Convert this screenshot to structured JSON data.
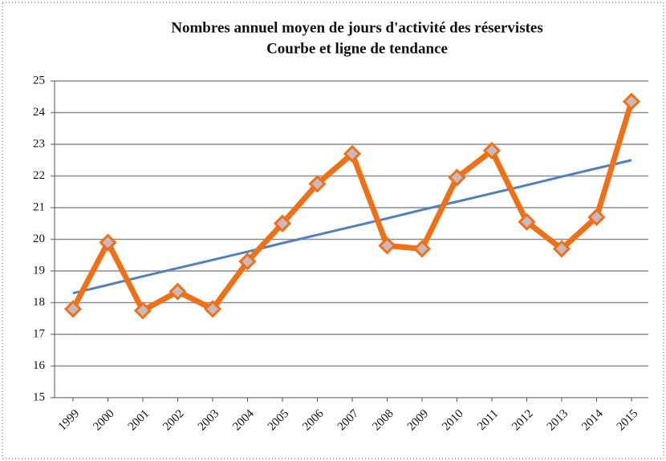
{
  "chart_data": {
    "type": "line",
    "title": "Nombres annuel moyen de jours d'activité des réservistes",
    "subtitle": "Courbe et ligne de tendance",
    "categories": [
      "1999",
      "2000",
      "2001",
      "2002",
      "2003",
      "2004",
      "2005",
      "2006",
      "2007",
      "2008",
      "2009",
      "2010",
      "2011",
      "2012",
      "2013",
      "2014",
      "2015"
    ],
    "series": [
      {
        "color": "#f07018",
        "values": [
          17.8,
          19.9,
          17.75,
          18.35,
          17.8,
          19.3,
          20.5,
          21.75,
          22.7,
          19.8,
          19.7,
          21.95,
          22.8,
          20.55,
          19.7,
          20.7,
          24.35
        ]
      },
      {
        "color": "#4f81bd",
        "values": [
          18.3,
          18.56,
          18.83,
          19.09,
          19.35,
          19.61,
          19.88,
          20.14,
          20.4,
          20.66,
          20.93,
          21.19,
          21.45,
          21.71,
          21.98,
          22.24,
          22.5
        ]
      }
    ],
    "ylim": [
      15,
      25
    ],
    "yticks": [
      15,
      16,
      17,
      18,
      19,
      20,
      21,
      22,
      23,
      24,
      25
    ],
    "grid": true
  }
}
